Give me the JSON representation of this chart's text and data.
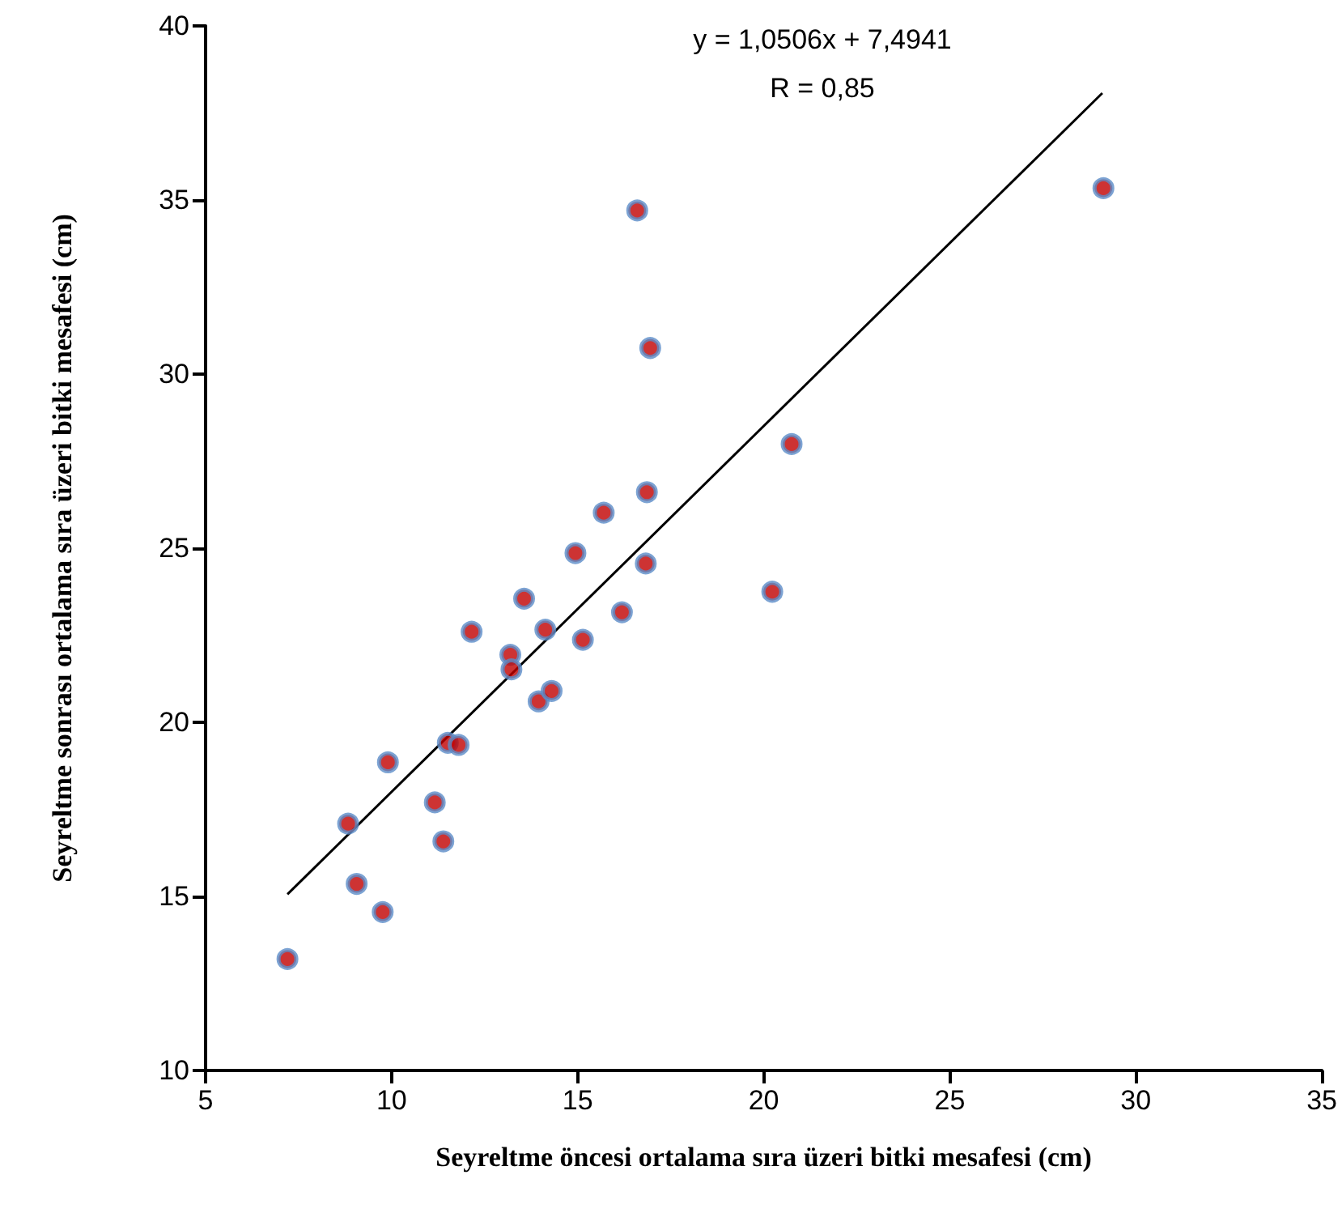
{
  "chart_data": {
    "type": "scatter",
    "xlabel": "Seyreltme öncesi ortalama sıra üzeri bitki mesafesi (cm)",
    "ylabel": "Seyreltme sonrası ortalama sıra üzeri bitki mesafesi (cm)",
    "annotations": [
      "y = 1,0506x + 7,4941",
      "R = 0,85"
    ],
    "xlim": [
      5,
      35
    ],
    "xticks": [
      5,
      10,
      15,
      20,
      25,
      30,
      35
    ],
    "ylim": [
      10,
      40
    ],
    "yticks": [
      10,
      15,
      20,
      25,
      30,
      35,
      40
    ],
    "grid": false,
    "marker": "circle",
    "series": [
      {
        "color": "#c00000",
        "x": [
          7.2,
          9.06,
          9.76,
          8.83,
          9.9,
          11.16,
          11.39,
          11.51,
          11.8,
          12.15,
          13.19,
          13.22,
          13.95,
          14.3,
          14.13,
          15.14,
          16.86,
          15.7,
          14.94,
          16.83,
          13.56,
          16.19,
          20.23,
          29.13,
          20.75,
          16.6,
          16.95
        ],
        "values": [
          13.2,
          15.36,
          14.55,
          17.09,
          18.85,
          17.7,
          16.58,
          19.41,
          19.35,
          22.6,
          21.94,
          21.52,
          20.6,
          20.9,
          22.66,
          22.37,
          26.61,
          26.02,
          24.86,
          24.56,
          23.55,
          23.16,
          23.75,
          35.34,
          27.99,
          34.7,
          30.75
        ]
      },
      {
        "type": "line",
        "color": "#000000",
        "marker": "none",
        "x": [
          7.2,
          29.1
        ],
        "values": [
          15.06,
          38.07
        ]
      }
    ]
  }
}
